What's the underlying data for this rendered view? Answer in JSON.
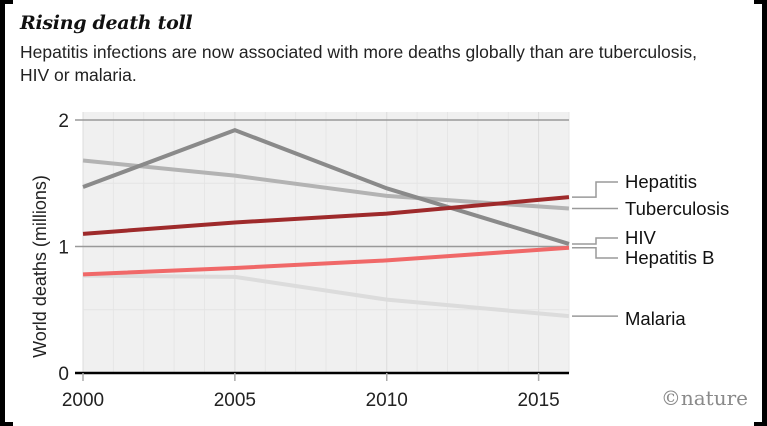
{
  "header": {
    "title": "Rising death toll",
    "subtitle": "Hepatitis infections are now associated with more deaths globally than are tuberculosis, HIV or malaria."
  },
  "watermark": "©nature",
  "chart_data": {
    "type": "line",
    "title": "Rising death toll",
    "subtitle": "Hepatitis infections are now associated with more deaths globally than are tuberculosis, HIV or malaria.",
    "xlabel": "",
    "ylabel": "World deaths (millions)",
    "xlim": [
      2000,
      2016
    ],
    "ylim": [
      0,
      2
    ],
    "x_ticks": [
      2000,
      2005,
      2010,
      2015
    ],
    "x_tick_labels": [
      "2000",
      "2005",
      "2010",
      "2015"
    ],
    "y_ticks": [
      0,
      1,
      2
    ],
    "y_tick_labels": [
      "0",
      "1",
      "2"
    ],
    "grid": true,
    "legend": "right (direct labels at line ends)",
    "x": [
      2000,
      2005,
      2010,
      2016
    ],
    "series": [
      {
        "name": "Malaria",
        "color": "#dcdcdc",
        "values": [
          0.77,
          0.76,
          0.58,
          0.45
        ]
      },
      {
        "name": "Tuberculosis",
        "color": "#b3b3b3",
        "values": [
          1.68,
          1.56,
          1.4,
          1.3
        ]
      },
      {
        "name": "HIV",
        "color": "#8a8a8a",
        "values": [
          1.47,
          1.92,
          1.46,
          1.02
        ]
      },
      {
        "name": "Hepatitis B",
        "color": "#f06868",
        "values": [
          0.78,
          0.83,
          0.89,
          0.99
        ]
      },
      {
        "name": "Hepatitis",
        "color": "#9e2a2b",
        "values": [
          1.1,
          1.19,
          1.26,
          1.39
        ]
      }
    ],
    "labels": [
      {
        "series": "Hepatitis",
        "text": "Hepatitis"
      },
      {
        "series": "Tuberculosis",
        "text": "Tuberculosis"
      },
      {
        "series": "HIV",
        "text": "HIV"
      },
      {
        "series": "Hepatitis B",
        "text": "Hepatitis B"
      },
      {
        "series": "Malaria",
        "text": "Malaria"
      }
    ]
  }
}
